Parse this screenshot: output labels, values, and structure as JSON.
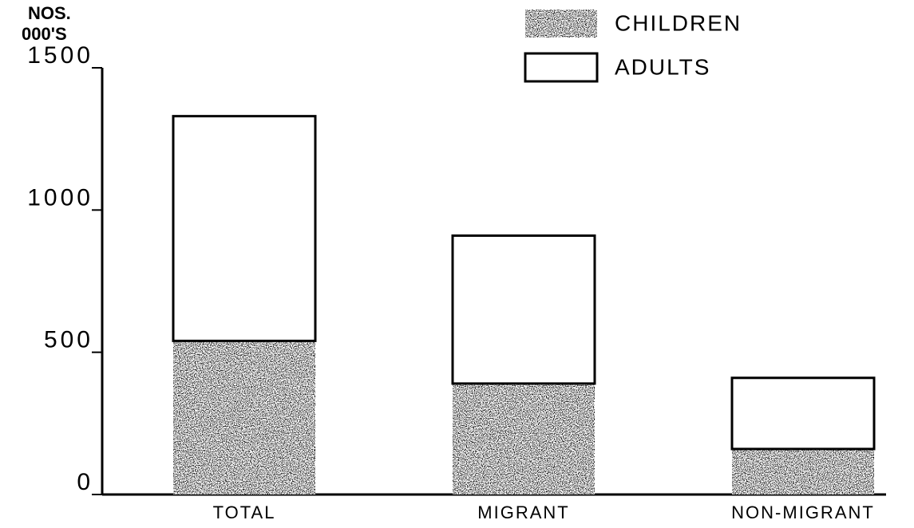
{
  "chart_data": {
    "type": "stacked_bar",
    "ylabel": [
      "NOS.",
      "000'S"
    ],
    "categories": [
      "TOTAL",
      "MIGRANT",
      "NON-MIGRANT"
    ],
    "series": [
      {
        "name": "CHILDREN",
        "color": "#1a1a1a",
        "values": [
          540,
          390,
          160
        ]
      },
      {
        "name": "ADULTS",
        "color": "#ffffff",
        "values": [
          790,
          520,
          250
        ]
      }
    ],
    "ylim": [
      0,
      1500
    ],
    "yticks": [
      0,
      500,
      1000,
      1500
    ],
    "grid": false,
    "legend": "top-right"
  }
}
